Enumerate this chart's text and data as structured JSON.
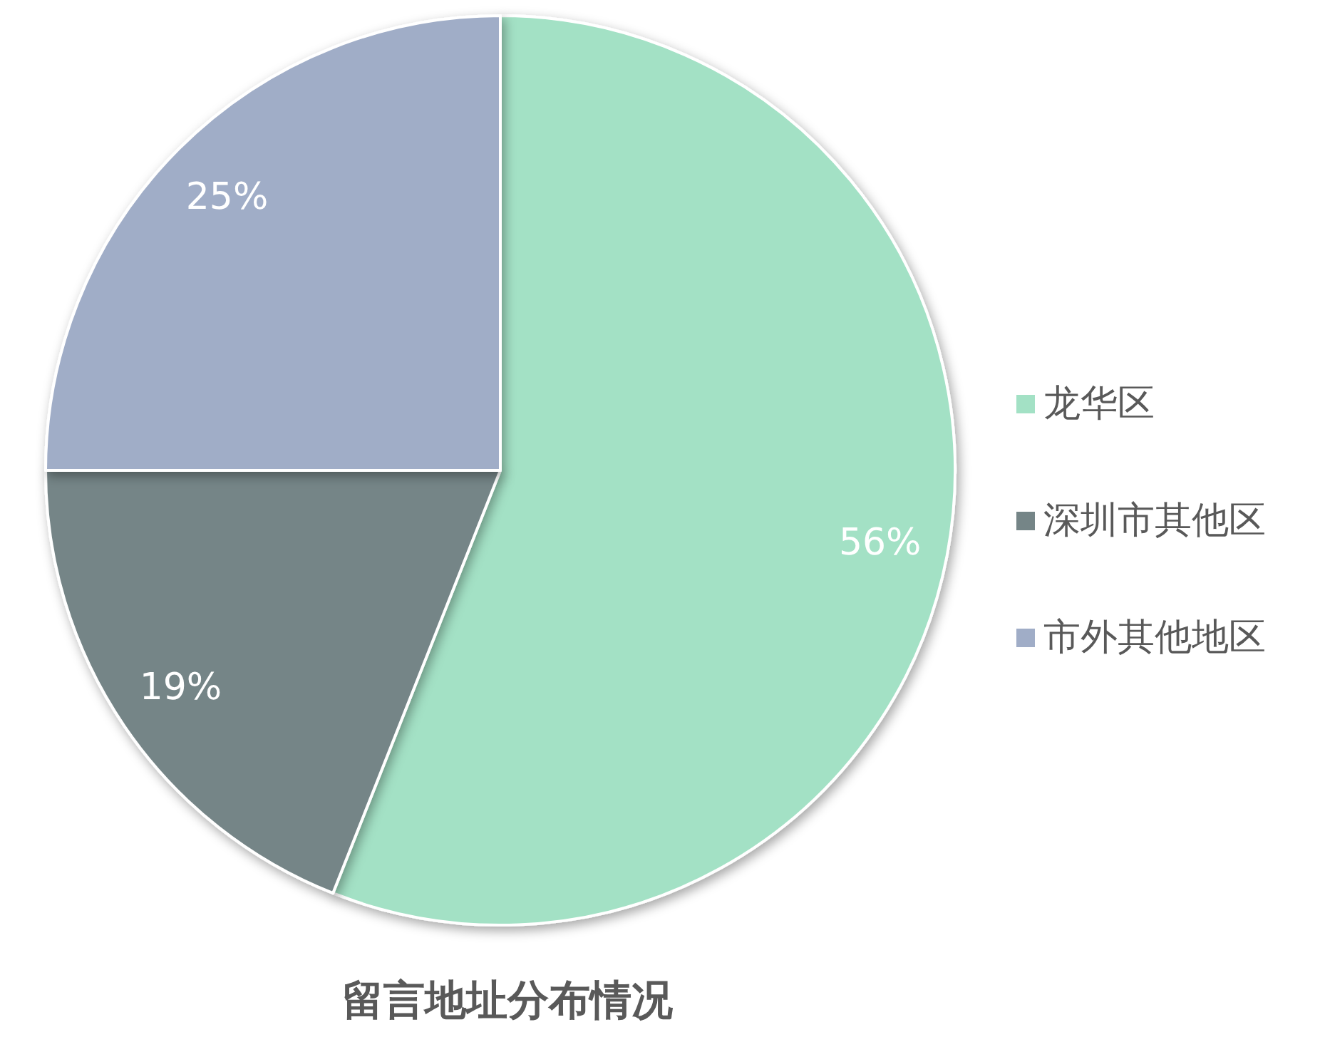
{
  "chart_data": {
    "type": "pie",
    "title": "留言地址分布情况",
    "categories": [
      "龙华区",
      "深圳市其他区",
      "市外其他地区"
    ],
    "values": [
      56,
      19,
      25
    ],
    "colors": [
      "#a3e1c5",
      "#758587",
      "#a0adc7"
    ],
    "value_labels": [
      "56%",
      "19%",
      "25%"
    ],
    "legend": "right"
  }
}
